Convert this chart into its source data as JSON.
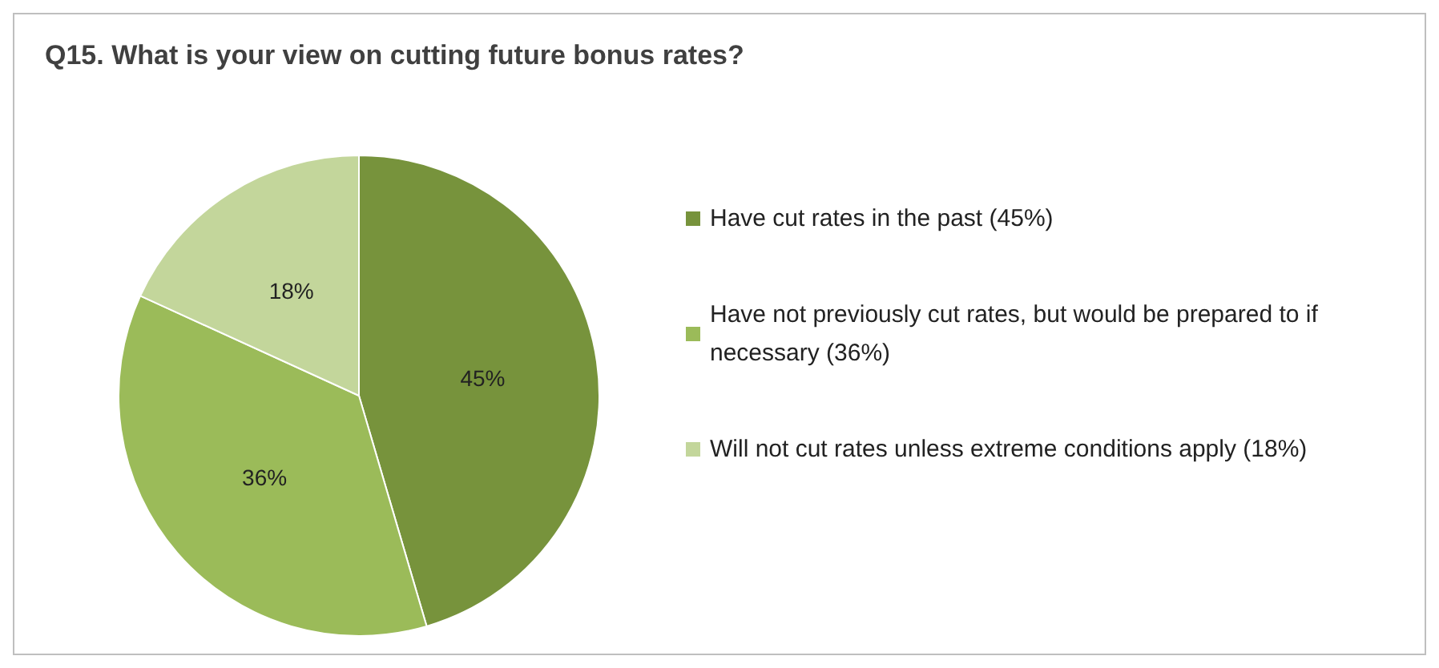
{
  "chart_data": {
    "type": "pie",
    "title": "Q15. What is your view on cutting future bonus rates?",
    "categories": [
      "Have cut rates in the past (45%)",
      "Have not previously cut rates, but would be prepared to if necessary (36%)",
      "Will not cut rates unless extreme conditions apply (18%)"
    ],
    "values": [
      45,
      36,
      18
    ],
    "value_labels": [
      "45%",
      "36%",
      "18%"
    ],
    "colors": [
      "#77933c",
      "#9bbb59",
      "#c3d69b"
    ],
    "legend": "right"
  }
}
